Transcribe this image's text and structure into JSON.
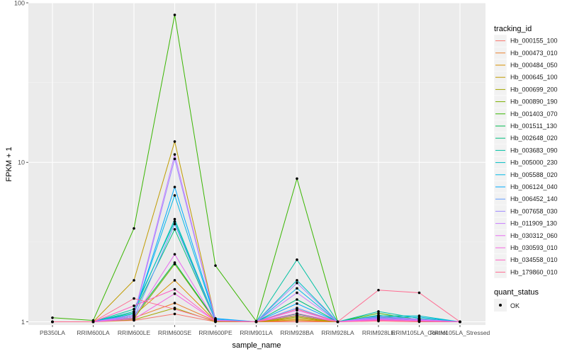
{
  "chart_data": {
    "type": "line",
    "title": "",
    "xlabel": "sample_name",
    "ylabel": "FPKM + 1",
    "y_scale": "log10",
    "ylim": [
      0.955,
      100
    ],
    "y_ticks": [
      1,
      10,
      100
    ],
    "y_tick_labels": [
      "1",
      "10",
      "100"
    ],
    "grid": true,
    "legend_placement": "right",
    "categories": [
      "PB350LA",
      "RRIM600LA",
      "RRIM600LE",
      "RRIM600SE",
      "RRIM600PE",
      "RRIM901LA",
      "RRIM928BA",
      "RRIM928LA",
      "RRIM928LE",
      "RRIM105LA_Control",
      "RRIM105LA_Stressed"
    ],
    "legend_color": {
      "title": "tracking_id"
    },
    "legend_shape": {
      "title": "quant_status",
      "label": "OK"
    },
    "series": [
      {
        "name": "Hb_000155_100",
        "color": "#F8766D",
        "values": [
          1.0,
          1.0,
          1.02,
          1.12,
          1.0,
          1.0,
          1.0,
          1.0,
          1.01,
          1.0,
          1.0
        ]
      },
      {
        "name": "Hb_000473_010",
        "color": "#EA8331",
        "values": [
          1.0,
          1.0,
          1.06,
          1.31,
          1.01,
          1.0,
          1.02,
          1.0,
          1.03,
          1.01,
          1.0
        ]
      },
      {
        "name": "Hb_000484_050",
        "color": "#D89000",
        "values": [
          1.0,
          1.0,
          1.1,
          1.82,
          1.01,
          1.0,
          1.03,
          1.0,
          1.05,
          1.02,
          1.0
        ]
      },
      {
        "name": "Hb_000645_100",
        "color": "#C09B00",
        "values": [
          1.0,
          1.0,
          1.82,
          13.5,
          1.03,
          1.0,
          1.05,
          1.0,
          1.07,
          1.03,
          1.0
        ]
      },
      {
        "name": "Hb_000699_200",
        "color": "#A3A500",
        "values": [
          1.0,
          1.0,
          1.03,
          1.22,
          1.0,
          1.0,
          1.07,
          1.0,
          1.04,
          1.01,
          1.0
        ]
      },
      {
        "name": "Hb_000890_190",
        "color": "#7CAE00",
        "values": [
          1.0,
          1.0,
          1.05,
          2.3,
          1.01,
          1.0,
          1.09,
          1.0,
          1.06,
          1.02,
          1.0
        ]
      },
      {
        "name": "Hb_001403_070",
        "color": "#39B600",
        "values": [
          1.06,
          1.02,
          3.85,
          84.0,
          2.25,
          1.01,
          7.9,
          1.0,
          1.13,
          1.03,
          1.0
        ]
      },
      {
        "name": "Hb_001511_130",
        "color": "#00BB4E",
        "values": [
          1.0,
          1.0,
          1.08,
          2.35,
          1.02,
          1.0,
          1.12,
          1.0,
          1.08,
          1.01,
          1.0
        ]
      },
      {
        "name": "Hb_002648_020",
        "color": "#00BF7D",
        "values": [
          1.0,
          1.0,
          1.14,
          3.8,
          1.02,
          1.0,
          1.38,
          1.0,
          1.1,
          1.03,
          1.0
        ]
      },
      {
        "name": "Hb_003683_090",
        "color": "#00C1A3",
        "values": [
          1.0,
          1.0,
          1.2,
          4.25,
          1.03,
          1.0,
          2.45,
          1.0,
          1.16,
          1.05,
          1.0
        ]
      },
      {
        "name": "Hb_005000_230",
        "color": "#00BFC4",
        "values": [
          1.0,
          1.0,
          1.16,
          4.4,
          1.03,
          1.0,
          1.82,
          1.0,
          1.09,
          1.09,
          1.0
        ]
      },
      {
        "name": "Hb_005588_020",
        "color": "#00B8E7",
        "values": [
          1.0,
          1.0,
          1.12,
          6.2,
          1.04,
          1.0,
          1.62,
          1.0,
          1.07,
          1.07,
          1.0
        ]
      },
      {
        "name": "Hb_006124_040",
        "color": "#00A9FF",
        "values": [
          1.0,
          1.0,
          1.1,
          7.0,
          1.05,
          1.0,
          1.3,
          1.0,
          1.06,
          1.04,
          1.0
        ]
      },
      {
        "name": "Hb_006452_140",
        "color": "#619CFF",
        "values": [
          1.0,
          1.0,
          1.06,
          4.1,
          1.02,
          1.0,
          1.22,
          1.0,
          1.05,
          1.02,
          1.0
        ]
      },
      {
        "name": "Hb_007658_030",
        "color": "#9F8CFF",
        "values": [
          1.0,
          1.0,
          1.08,
          10.5,
          1.03,
          1.0,
          1.75,
          1.0,
          1.08,
          1.04,
          1.0
        ]
      },
      {
        "name": "Hb_011909_130",
        "color": "#C77CFF",
        "values": [
          1.0,
          1.0,
          1.1,
          11.2,
          1.02,
          1.0,
          1.52,
          1.0,
          1.06,
          1.03,
          1.0
        ]
      },
      {
        "name": "Hb_030312_060",
        "color": "#E76BF3",
        "values": [
          1.0,
          1.0,
          1.06,
          2.65,
          1.01,
          1.0,
          1.18,
          1.0,
          1.04,
          1.02,
          1.0
        ]
      },
      {
        "name": "Hb_030593_010",
        "color": "#F564E3",
        "values": [
          1.0,
          1.0,
          1.04,
          1.5,
          1.01,
          1.0,
          1.13,
          1.0,
          1.03,
          1.01,
          1.0
        ]
      },
      {
        "name": "Hb_034558_010",
        "color": "#FF61C3",
        "values": [
          1.0,
          1.0,
          1.26,
          1.6,
          1.01,
          1.0,
          1.1,
          1.0,
          1.02,
          1.01,
          1.0
        ]
      },
      {
        "name": "Hb_179860_010",
        "color": "#FF6C91",
        "values": [
          1.0,
          1.0,
          1.4,
          1.2,
          1.01,
          1.0,
          1.2,
          1.0,
          1.58,
          1.52,
          1.0
        ]
      }
    ]
  }
}
